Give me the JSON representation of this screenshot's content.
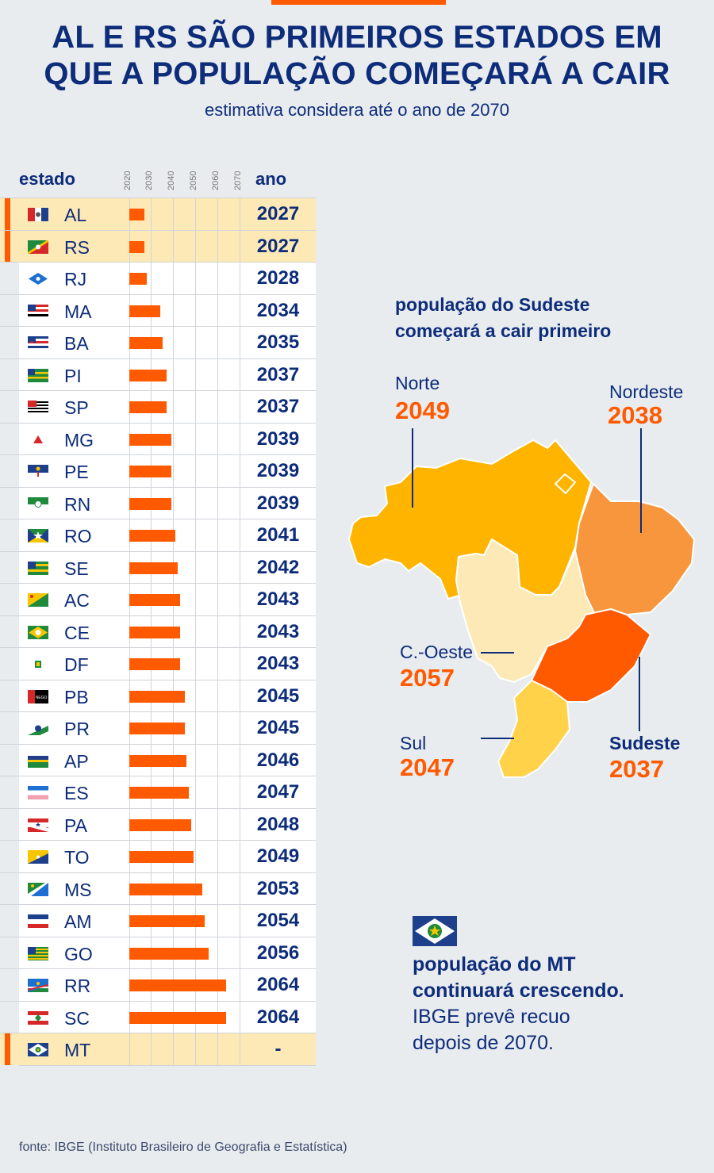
{
  "header": {
    "title_line1": "AL E RS SÃO PRIMEIROS ESTADOS EM",
    "title_line2": "QUE A POPULAÇÃO COMEÇARÁ A CAIR",
    "subtitle": "estimativa considera até o ano de 2070"
  },
  "table": {
    "col_state": "estado",
    "col_year": "ano",
    "ticks": [
      "2020",
      "2030",
      "2040",
      "2050",
      "2060",
      "2070"
    ]
  },
  "chart_data": {
    "type": "bar",
    "orientation": "horizontal",
    "xlim": [
      2020,
      2070
    ],
    "states": [
      {
        "abbr": "AL",
        "year": 2027,
        "year_label": "2027",
        "highlight": true
      },
      {
        "abbr": "RS",
        "year": 2027,
        "year_label": "2027",
        "highlight": true
      },
      {
        "abbr": "RJ",
        "year": 2028,
        "year_label": "2028"
      },
      {
        "abbr": "MA",
        "year": 2034,
        "year_label": "2034"
      },
      {
        "abbr": "BA",
        "year": 2035,
        "year_label": "2035"
      },
      {
        "abbr": "PI",
        "year": 2037,
        "year_label": "2037"
      },
      {
        "abbr": "SP",
        "year": 2037,
        "year_label": "2037"
      },
      {
        "abbr": "MG",
        "year": 2039,
        "year_label": "2039"
      },
      {
        "abbr": "PE",
        "year": 2039,
        "year_label": "2039"
      },
      {
        "abbr": "RN",
        "year": 2039,
        "year_label": "2039"
      },
      {
        "abbr": "RO",
        "year": 2041,
        "year_label": "2041"
      },
      {
        "abbr": "SE",
        "year": 2042,
        "year_label": "2042"
      },
      {
        "abbr": "AC",
        "year": 2043,
        "year_label": "2043"
      },
      {
        "abbr": "CE",
        "year": 2043,
        "year_label": "2043"
      },
      {
        "abbr": "DF",
        "year": 2043,
        "year_label": "2043"
      },
      {
        "abbr": "PB",
        "year": 2045,
        "year_label": "2045"
      },
      {
        "abbr": "PR",
        "year": 2045,
        "year_label": "2045"
      },
      {
        "abbr": "AP",
        "year": 2046,
        "year_label": "2046"
      },
      {
        "abbr": "ES",
        "year": 2047,
        "year_label": "2047"
      },
      {
        "abbr": "PA",
        "year": 2048,
        "year_label": "2048"
      },
      {
        "abbr": "TO",
        "year": 2049,
        "year_label": "2049"
      },
      {
        "abbr": "MS",
        "year": 2053,
        "year_label": "2053"
      },
      {
        "abbr": "AM",
        "year": 2054,
        "year_label": "2054"
      },
      {
        "abbr": "GO",
        "year": 2056,
        "year_label": "2056"
      },
      {
        "abbr": "RR",
        "year": 2064,
        "year_label": "2064"
      },
      {
        "abbr": "SC",
        "year": 2064,
        "year_label": "2064"
      },
      {
        "abbr": "MT",
        "year": null,
        "year_label": "-",
        "highlight": true
      }
    ]
  },
  "map": {
    "heading_line1": "população do Sudeste",
    "heading_line2": "começará a cair primeiro",
    "regions": {
      "norte": {
        "name": "Norte",
        "year": "2049"
      },
      "nordeste": {
        "name": "Nordeste",
        "year": "2038"
      },
      "centro_oeste": {
        "name": "C.-Oeste",
        "year": "2057"
      },
      "sul": {
        "name": "Sul",
        "year": "2047"
      },
      "sudeste": {
        "name": "Sudeste",
        "year": "2037"
      }
    },
    "colors": {
      "norte": "#ffb400",
      "nordeste": "#f7963c",
      "centro_oeste": "#fde9b6",
      "sul": "#ffd24a",
      "sudeste": "#ff5a00"
    }
  },
  "mt_note": {
    "line1": "população do MT",
    "line2": "continuará crescendo.",
    "line3": "IBGE prevê recuo",
    "line4": "depois de 2070."
  },
  "source": "fonte: IBGE (Instituto Brasileiro de Geografia e Estatística)"
}
